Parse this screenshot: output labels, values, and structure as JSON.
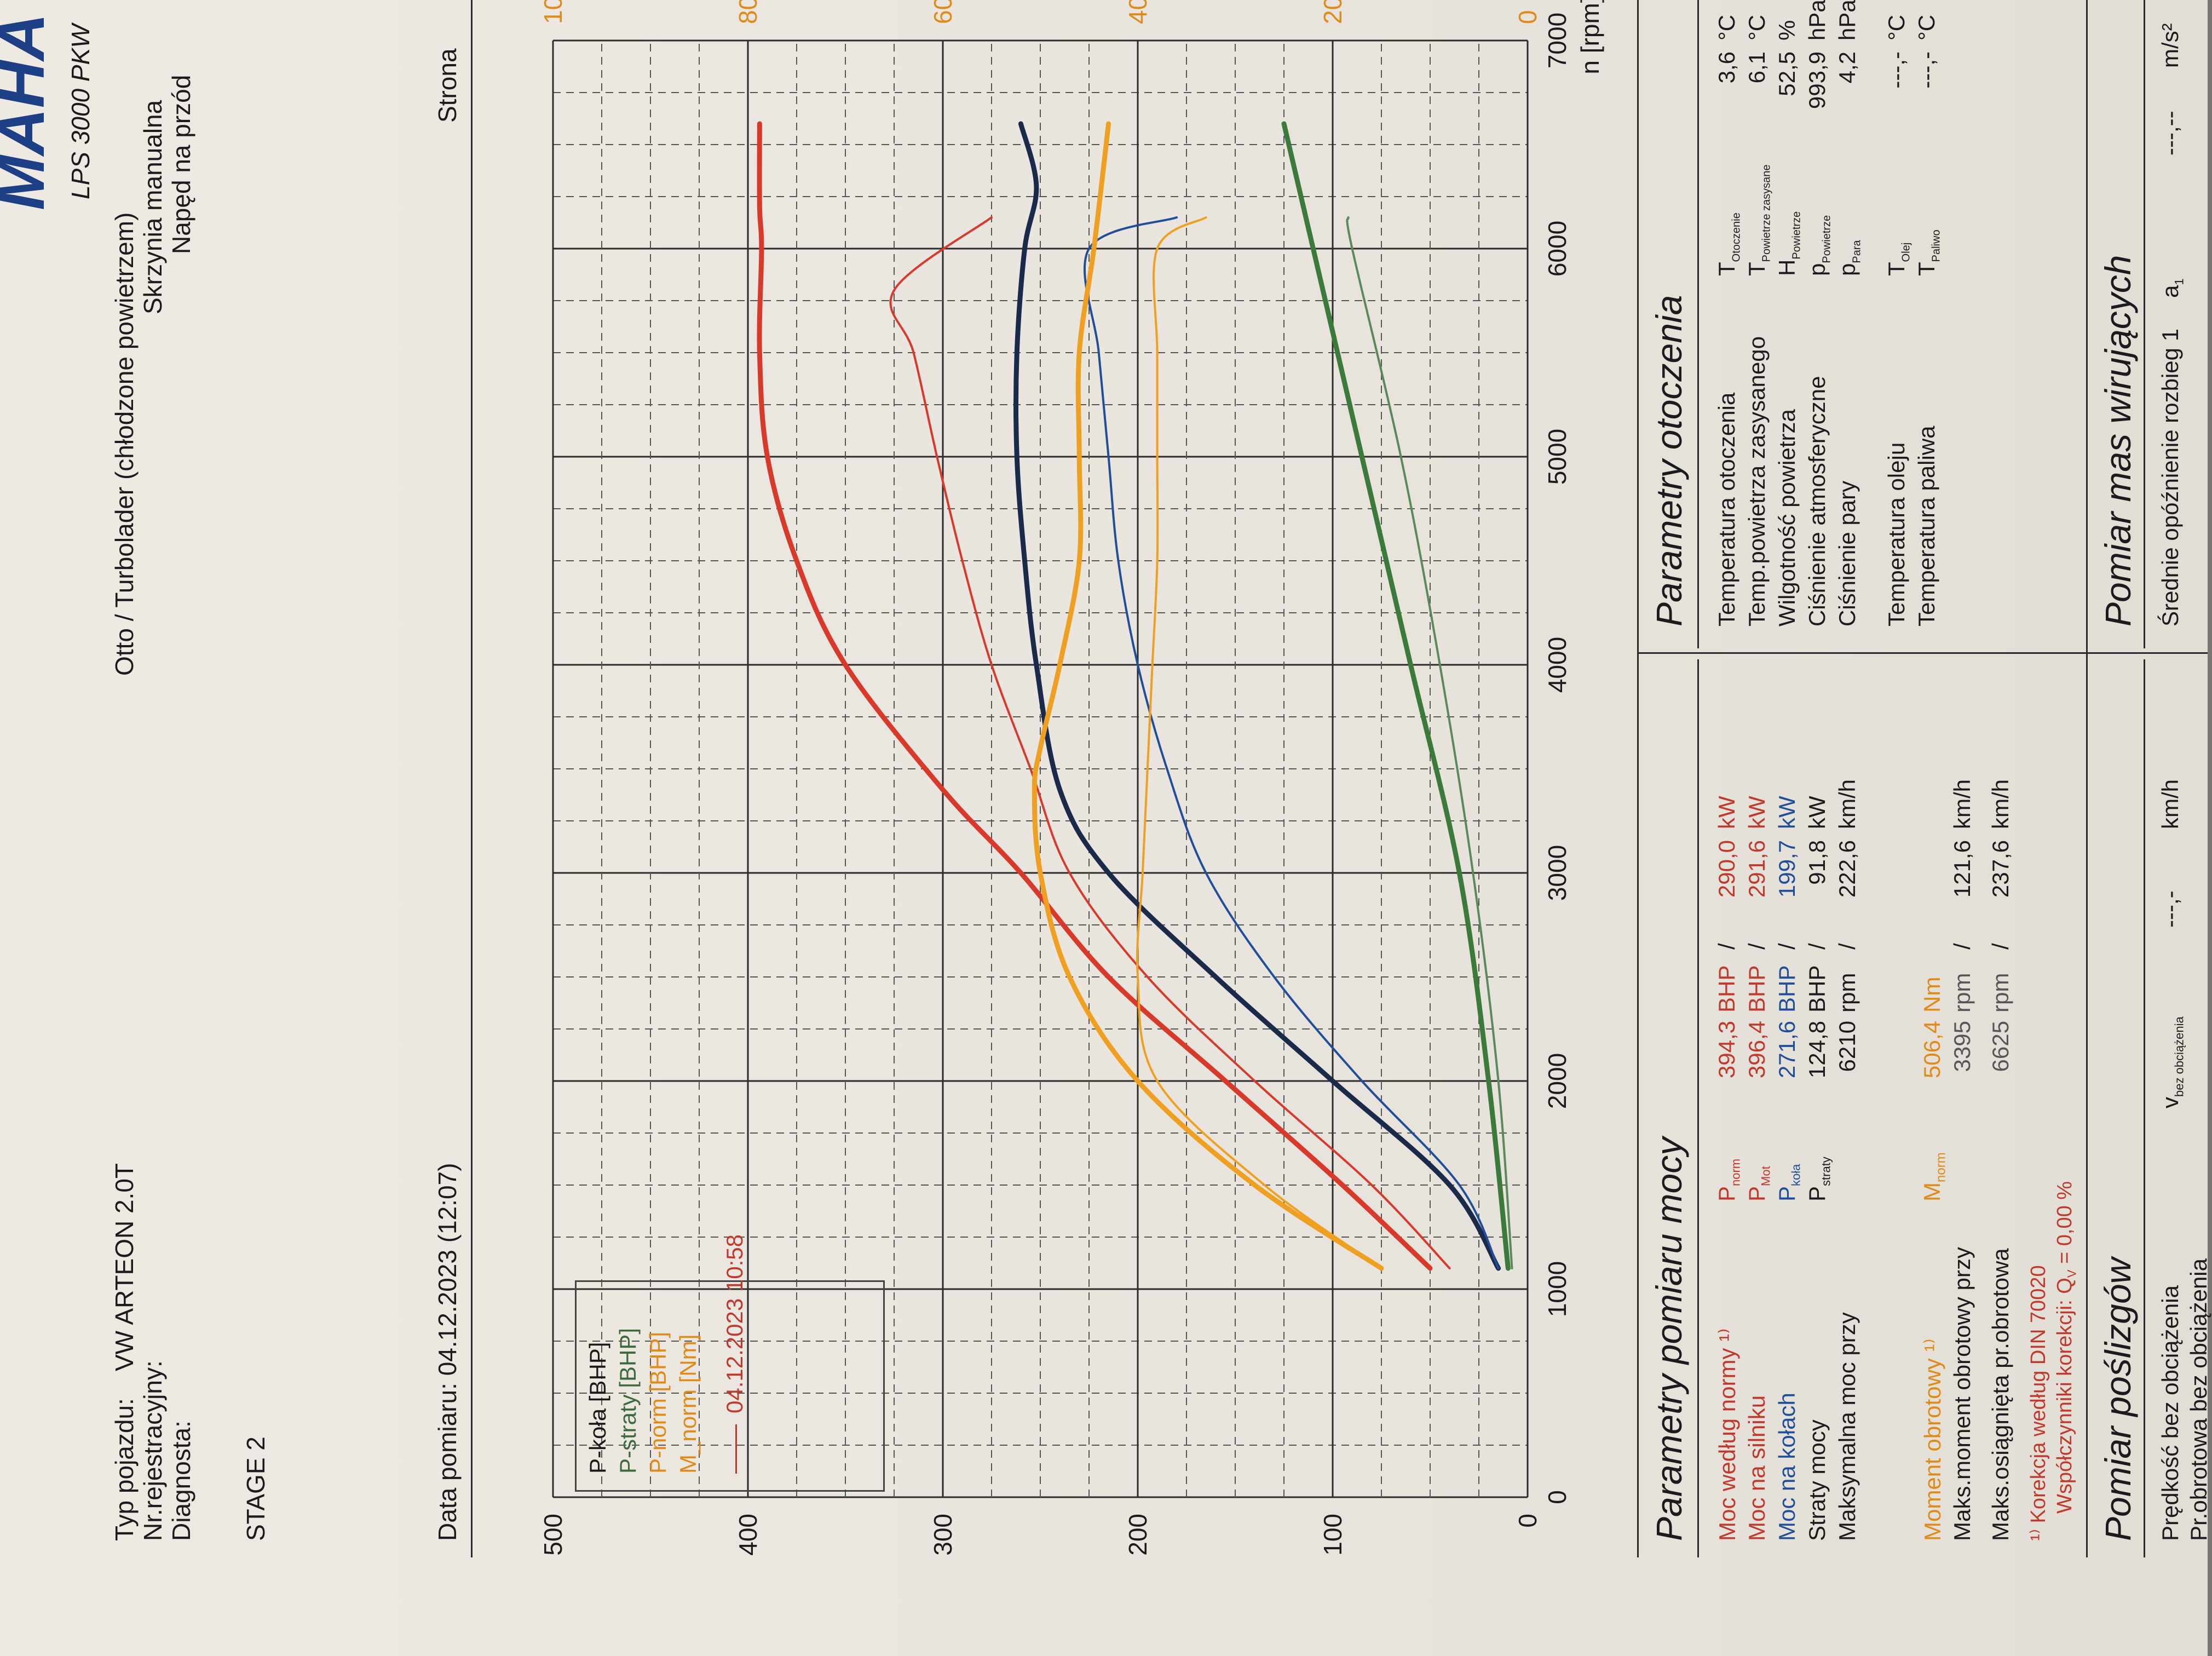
{
  "header": {
    "brand": "MAHA",
    "model": "LPS 3000 PKW",
    "vehicle_type_label": "Typ pojazdu:",
    "vehicle_type_value": "VW ARTEON 2.0T",
    "registration_label": "Nr.rejestracyjny:",
    "diagnostician_label": "Diagnosta:",
    "engine_type": "Otto / Turbolader (chłodzone powietrzem)",
    "gearbox": "Skrzynia manualna",
    "drive": "Napęd na przód",
    "stage": "STAGE 2",
    "measurement_date": "Data pomiaru: 04.12.2023 (12:07)",
    "page_label": "Strona"
  },
  "legend": {
    "items": [
      "P-koła [BHP]",
      "P-straty [BHP]",
      "P-norm [BHP]",
      "M_norm [Nm]"
    ],
    "run": "04.12.2023 10:58"
  },
  "colors": {
    "p_kola": "#1f4f9a",
    "p_straty": "#3c7a3c",
    "p_norm": "#d8392b",
    "m_norm": "#f0a020",
    "run_line": "#c0392b"
  },
  "chart_data": {
    "type": "line",
    "x_label": "n [rpm]",
    "x_ticks": [
      "0",
      "1000",
      "2000",
      "3000",
      "4000",
      "5000",
      "6000",
      "7000"
    ],
    "y_left_ticks": [
      "0",
      "100",
      "200",
      "300",
      "400",
      "500"
    ],
    "y_right_ticks": [
      "0",
      "200",
      "400",
      "600",
      "800",
      "1000"
    ],
    "xlim": [
      0,
      7000
    ],
    "ylim_left": [
      0,
      500
    ],
    "ylim_right": [
      0,
      1000
    ],
    "grid": true,
    "legend_position": "top-left",
    "series": [
      {
        "name": "P-norm [BHP]",
        "axis": "left",
        "weight": "thick",
        "color": "#d8392b",
        "x": [
          1100,
          1500,
          2000,
          2500,
          3000,
          3400,
          4000,
          4500,
          5000,
          5500,
          6000,
          6200,
          6600
        ],
        "y": [
          50,
          95,
          155,
          215,
          260,
          300,
          350,
          375,
          390,
          394,
          393,
          394,
          394
        ]
      },
      {
        "name": "P-norm [BHP]",
        "axis": "left",
        "weight": "thin",
        "color": "#d8392b",
        "x": [
          1100,
          1500,
          2000,
          2500,
          3000,
          3500,
          4000,
          4500,
          5000,
          5500,
          5800,
          6150
        ],
        "y": [
          40,
          80,
          140,
          195,
          235,
          255,
          275,
          290,
          303,
          315,
          325,
          275
        ]
      },
      {
        "name": "P-koła [BHP]",
        "axis": "left",
        "weight": "thick",
        "color": "#1a2a4a",
        "x": [
          1100,
          1500,
          2000,
          2500,
          3000,
          3400,
          4000,
          4500,
          5000,
          5500,
          6000,
          6300,
          6600
        ],
        "y": [
          15,
          40,
          100,
          160,
          215,
          240,
          252,
          258,
          262,
          262,
          258,
          252,
          260
        ]
      },
      {
        "name": "P-koła [BHP]",
        "axis": "left",
        "weight": "thin",
        "color": "#1f4f9a",
        "x": [
          1100,
          1500,
          2000,
          2500,
          3000,
          3500,
          4000,
          4500,
          5000,
          5500,
          6000,
          6150
        ],
        "y": [
          15,
          35,
          85,
          130,
          165,
          185,
          200,
          210,
          215,
          220,
          225,
          180
        ]
      },
      {
        "name": "M_norm [Nm]",
        "axis": "right",
        "weight": "thick",
        "color": "#f0a020",
        "x": [
          1100,
          1500,
          2000,
          2500,
          3000,
          3400,
          3600,
          4000,
          4500,
          5000,
          5500,
          6000,
          6600
        ],
        "y": [
          150,
          280,
          400,
          470,
          500,
          506,
          500,
          480,
          460,
          460,
          460,
          445,
          430
        ]
      },
      {
        "name": "M_norm [Nm]",
        "axis": "right",
        "weight": "thin",
        "color": "#f0a020",
        "x": [
          1100,
          1500,
          2000,
          2500,
          3000,
          3500,
          4000,
          4500,
          5000,
          5500,
          6000,
          6150
        ],
        "y": [
          150,
          270,
          380,
          400,
          395,
          390,
          385,
          380,
          380,
          380,
          380,
          330
        ]
      },
      {
        "name": "P-straty [BHP]",
        "axis": "left",
        "weight": "thick",
        "color": "#3c7a3c",
        "x": [
          1100,
          2000,
          3000,
          4000,
          5000,
          6000,
          6600
        ],
        "y": [
          10,
          20,
          35,
          60,
          85,
          110,
          125
        ]
      },
      {
        "name": "P-straty [BHP]",
        "axis": "left",
        "weight": "thin",
        "color": "#5a8a5a",
        "x": [
          1100,
          2000,
          3000,
          4000,
          5000,
          6000,
          6150
        ],
        "y": [
          8,
          15,
          28,
          45,
          65,
          90,
          92
        ]
      }
    ]
  },
  "power": {
    "title": "Parametry pomiaru mocy",
    "rows": [
      {
        "label": "Moc według normy ¹⁾",
        "sym": "P",
        "sub": "norm",
        "v1": "394,3",
        "u1": "BHP",
        "v2": "290,0",
        "u2": "kW",
        "tone": "red"
      },
      {
        "label": "Moc na silniku",
        "sym": "P",
        "sub": "Mot",
        "v1": "396,4",
        "u1": "BHP",
        "v2": "291,6",
        "u2": "kW",
        "tone": "red"
      },
      {
        "label": "Moc na kołach",
        "sym": "P",
        "sub": "koła",
        "v1": "271,6",
        "u1": "BHP",
        "v2": "199,7",
        "u2": "kW",
        "tone": "blue"
      },
      {
        "label": "Straty mocy",
        "sym": "P",
        "sub": "straty",
        "v1": "124,8",
        "u1": "BHP",
        "v2": "91,8",
        "u2": "kW",
        "tone": "dark"
      },
      {
        "label": "Maksymalna moc przy",
        "sym": "",
        "sub": "",
        "v1": "6210",
        "u1": "rpm",
        "v2": "222,6",
        "u2": "km/h",
        "tone": "dark"
      }
    ],
    "torque": {
      "label": "Moment obrotowy ¹⁾",
      "sym": "M",
      "sub": "norm",
      "v1": "506,4",
      "u1": "Nm"
    },
    "torque_at": {
      "label": "Maks.moment obrotowy przy",
      "v1": "3395",
      "u1": "rpm",
      "v2": "121,6",
      "u2": "km/h"
    },
    "max_rpm": {
      "label": "Maks.osiągnięta pr.obrotowa",
      "v1": "6625",
      "u1": "rpm",
      "v2": "237,6",
      "u2": "km/h"
    },
    "footnote1": "¹⁾ Korekcja według DIN 70020",
    "footnote2": "Współczynniki korekcji: Q",
    "footnote2_sub": "V",
    "footnote2_val": "=   0,00 %"
  },
  "ambient": {
    "title": "Parametry otoczenia",
    "rows": [
      {
        "label": "Temperatura otoczenia",
        "sym": "T",
        "sub": "Otoczenie",
        "val": "3,6",
        "unit": "°C"
      },
      {
        "label": "Temp.powietrza zasysanego",
        "sym": "T",
        "sub": "Powietrze zasysane",
        "val": "6,1",
        "unit": "°C"
      },
      {
        "label": "Wilgotność powietrza",
        "sym": "H",
        "sub": "Powietrze",
        "val": "52,5",
        "unit": "%"
      },
      {
        "label": "Ciśnienie atmosferyczne",
        "sym": "p",
        "sub": "Powietrze",
        "val": "993,9",
        "unit": "hPa"
      },
      {
        "label": "Ciśnienie pary",
        "sym": "p",
        "sub": "Para",
        "val": "4,2",
        "unit": "hPa"
      },
      {
        "label": "Temperatura oleju",
        "sym": "T",
        "sub": "Olej",
        "val": "---,-",
        "unit": "°C"
      },
      {
        "label": "Temperatura paliwa",
        "sym": "T",
        "sub": "Paliwo",
        "val": "---,-",
        "unit": "°C"
      }
    ]
  },
  "slip": {
    "title": "Pomiar poślizgów",
    "row1": "Prędkość bez obciążenia",
    "row2": "Pr.obrotowa bez obciążenia",
    "sym": "v",
    "sub": "bez obciążenia",
    "val": "---,-",
    "unit": "km/h"
  },
  "rotating": {
    "title": "Pomiar mas wirujących",
    "row1": "Średnie opóźnienie rozbieg 1",
    "sym": "a",
    "sub": "1",
    "val": "---,--",
    "unit": "m/s²"
  }
}
